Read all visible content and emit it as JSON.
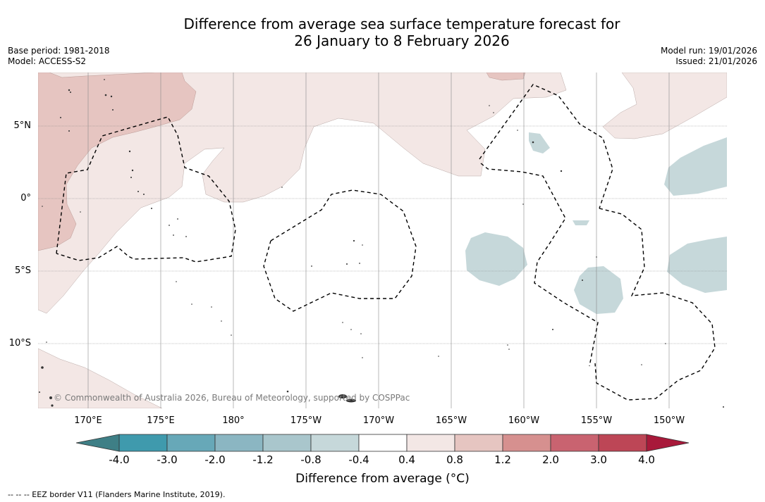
{
  "title": {
    "line1": "Difference from average sea surface temperature forecast for",
    "line2": "26 January to 8 February 2026"
  },
  "meta": {
    "base_period": "Base period: 1981-2018",
    "model": "Model: ACCESS-S2",
    "model_run": "Model run: 19/01/2026",
    "issued": "Issued: 21/01/2026"
  },
  "map": {
    "lat_labels": [
      "5°N",
      "0°",
      "5°S",
      "10°S"
    ],
    "lon_labels": [
      "170°E",
      "175°E",
      "180°",
      "175°W",
      "170°W",
      "165°W",
      "160°W",
      "155°W",
      "150°W"
    ],
    "copyright": "© Commonwealth of Australia 2026, Bureau of Meteorology, supported by COSPPac"
  },
  "colorbar": {
    "ticks": [
      "-4.0",
      "-3.0",
      "-2.0",
      "-1.2",
      "-0.8",
      "-0.4",
      "0.4",
      "0.8",
      "1.2",
      "2.0",
      "3.0",
      "4.0"
    ],
    "colors": [
      "#3f9aad",
      "#67a8b8",
      "#8bb6c2",
      "#a9c6cc",
      "#c6d8da",
      "#ffffff",
      "#f3e7e5",
      "#e6c5c1",
      "#d6908f",
      "#c96370",
      "#bd4656"
    ],
    "under_color": "#3e7f86",
    "over_color": "#a8193a",
    "label": "Difference from average (°C)"
  },
  "legend": {
    "eez": "--  --  -- EEZ border V11 (Flanders Marine Institute, 2019)."
  }
}
